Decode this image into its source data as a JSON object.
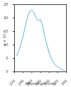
{
  "chart_data": {
    "type": "line",
    "x_label": "Wavelength (nm)",
    "y_label": "ε × 10⁻³",
    "x": [
      225,
      230,
      235,
      240,
      245,
      250,
      255,
      260,
      265,
      270,
      275,
      280,
      285,
      290,
      295,
      300,
      305,
      310,
      315,
      320,
      325,
      330,
      335
    ],
    "values": [
      6,
      8,
      10.5,
      13.5,
      17,
      20.5,
      22.5,
      23,
      22,
      20,
      19,
      19.5,
      17,
      13,
      10,
      7,
      5,
      3.5,
      2.5,
      1.8,
      1.2,
      0.8,
      0.5
    ],
    "color": "#5ab4e5",
    "xlim": [
      220,
      340
    ],
    "xticks": [
      220,
      240,
      260,
      280,
      300,
      320,
      340
    ],
    "ylim": [
      0,
      25
    ],
    "yticks": [
      0,
      5,
      10,
      15,
      20,
      25
    ],
    "grid": false
  }
}
